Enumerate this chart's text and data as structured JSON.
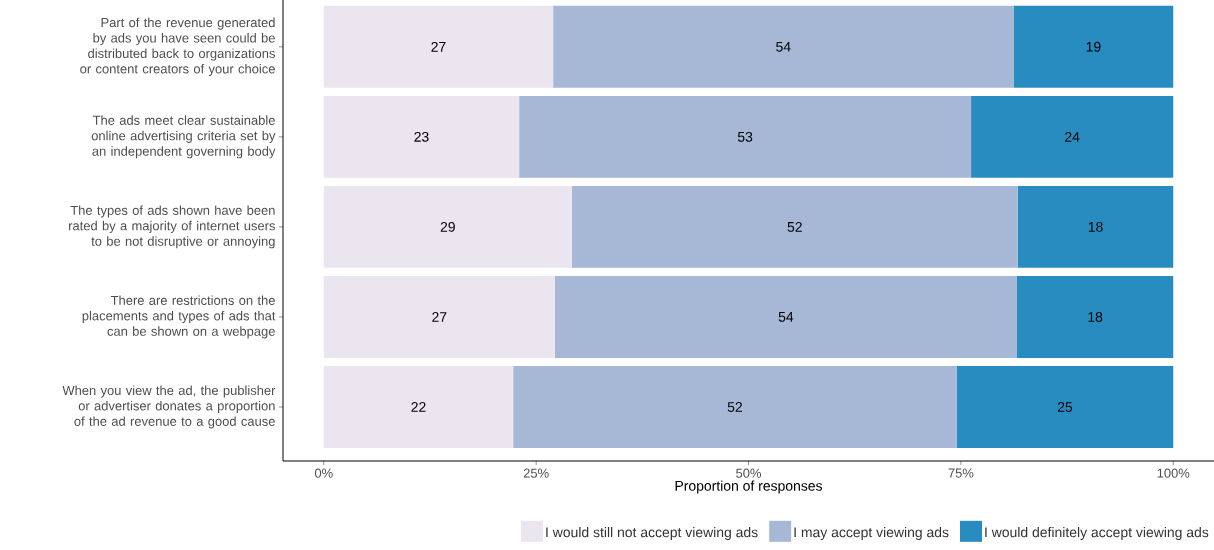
{
  "chart_data": {
    "type": "bar",
    "orientation": "horizontal",
    "stacked": true,
    "categories": [
      "Part of the revenue generated by ads you have seen could be distributed back to organizations or content creators of your choice",
      "The ads meet clear sustainable online advertising criteria set by an independent governing body",
      "The types of ads shown have been rated by a majority of internet users to be not disruptive or annoying",
      "There are restrictions on the placements and types of ads that can be shown on a webpage",
      "When you view the ad, the publisher or advertiser donates a proportion of the ad revenue to a good cause"
    ],
    "series": [
      {
        "name": "I would still not accept viewing ads",
        "color": "#ebe5ef",
        "values": [
          27.0,
          23.0,
          29.2,
          27.2,
          22.3
        ],
        "value_labels": [
          "27",
          "23",
          "29",
          "27",
          "22"
        ]
      },
      {
        "name": "I may accept viewing ads",
        "color": "#a6b8d6",
        "values": [
          54.2,
          53.2,
          52.5,
          54.4,
          52.2
        ],
        "value_labels": [
          "54",
          "53",
          "52",
          "54",
          "52"
        ]
      },
      {
        "name": "I would definitely accept viewing ads",
        "color": "#288cc0",
        "values": [
          18.8,
          23.8,
          18.3,
          18.4,
          25.5
        ],
        "value_labels": [
          "19",
          "24",
          "18",
          "18",
          "25"
        ]
      }
    ],
    "xlabel": "Proportion of responses",
    "xlim": [
      -4.8,
      104.8
    ],
    "xticks": [
      {
        "value": 0,
        "label": "0%"
      },
      {
        "value": 25,
        "label": "25%"
      },
      {
        "value": 50,
        "label": "50%"
      },
      {
        "value": 75,
        "label": "75%"
      },
      {
        "value": 100,
        "label": "100%"
      }
    ],
    "legend": "bottom right"
  }
}
